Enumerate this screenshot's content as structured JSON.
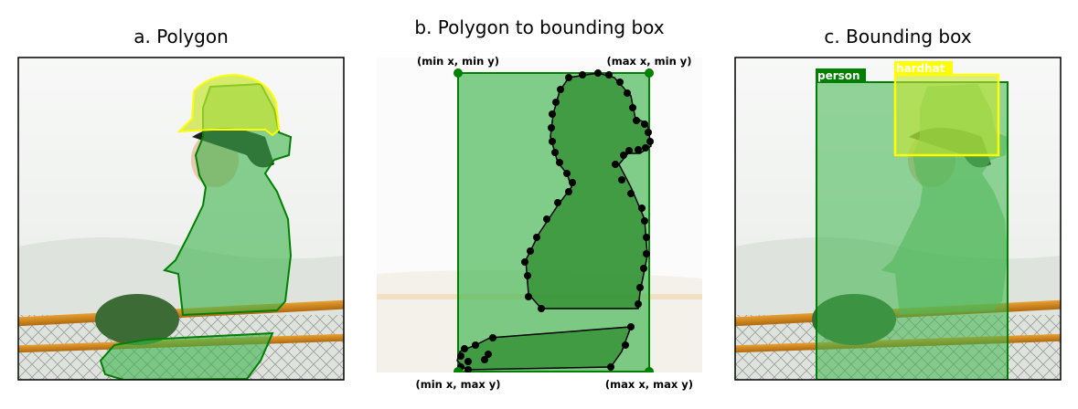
{
  "panels": {
    "a": {
      "title": "a. Polygon"
    },
    "b": {
      "title": "b. Polygon to bounding box",
      "corner_labels": {
        "top_left": "(min x, min y)",
        "top_right": "(max x, min y)",
        "bottom_left": "(min x, max y)",
        "bottom_right": "(max x, max y)"
      }
    },
    "c": {
      "title": "c. Bounding box",
      "boxes": [
        {
          "label": "person",
          "color": "#008000"
        },
        {
          "label": "hardhat",
          "color": "#ffff00"
        }
      ]
    }
  },
  "colors": {
    "person_fill": "#3cb44b",
    "person_outline": "#008000",
    "hardhat_fill": "#c8e632",
    "hardhat_outline": "#ffff00",
    "point_color": "#000000",
    "corner_point_color": "#008000"
  }
}
